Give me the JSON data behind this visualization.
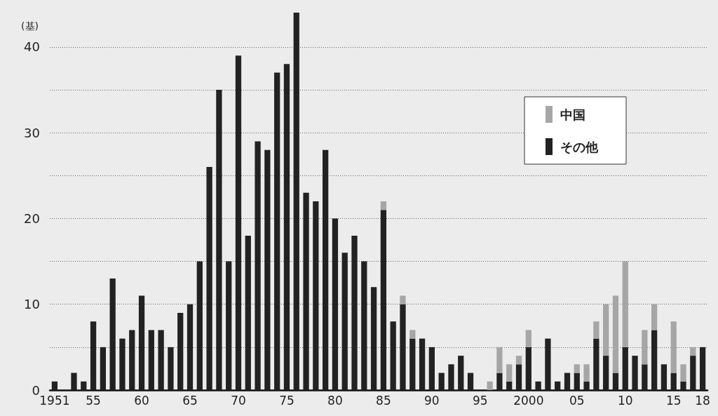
{
  "chart_data": {
    "type": "bar",
    "ylabel": "(基)",
    "categories": [
      "1951",
      null,
      null,
      null,
      "55",
      null,
      null,
      null,
      null,
      "60",
      null,
      null,
      null,
      null,
      "65",
      null,
      null,
      null,
      null,
      "70",
      null,
      null,
      null,
      null,
      "75",
      null,
      null,
      null,
      null,
      "80",
      null,
      null,
      null,
      null,
      "85",
      null,
      null,
      null,
      null,
      "90",
      null,
      null,
      null,
      null,
      "95",
      null,
      null,
      null,
      null,
      "2000",
      null,
      null,
      null,
      null,
      "05",
      null,
      null,
      null,
      null,
      "10",
      null,
      null,
      null,
      null,
      "15",
      null,
      null,
      "18"
    ],
    "stacked": true,
    "series": [
      {
        "name": "その他",
        "color": "#222222",
        "values": [
          1,
          0,
          2,
          1,
          8,
          5,
          13,
          6,
          7,
          11,
          7,
          7,
          5,
          9,
          10,
          15,
          26,
          35,
          15,
          39,
          18,
          29,
          28,
          37,
          38,
          44,
          23,
          22,
          28,
          20,
          16,
          18,
          15,
          12,
          21,
          8,
          10,
          6,
          6,
          5,
          2,
          3,
          4,
          2,
          0,
          0,
          2,
          1,
          3,
          5,
          1,
          6,
          1,
          2,
          2,
          1,
          6,
          4,
          2,
          5,
          4,
          3,
          7,
          3,
          2,
          1,
          4,
          5
        ]
      },
      {
        "name": "中国",
        "color": "#a6a6a6",
        "values": [
          null,
          null,
          null,
          null,
          null,
          null,
          null,
          null,
          null,
          null,
          null,
          null,
          null,
          null,
          null,
          null,
          null,
          null,
          null,
          null,
          null,
          null,
          null,
          null,
          null,
          null,
          null,
          null,
          null,
          null,
          null,
          null,
          null,
          null,
          1,
          null,
          1,
          1,
          null,
          null,
          null,
          null,
          null,
          null,
          null,
          1,
          3,
          2,
          1,
          2,
          null,
          null,
          null,
          null,
          1,
          2,
          2,
          6,
          9,
          10,
          null,
          4,
          3,
          null,
          6,
          2,
          1,
          null
        ]
      }
    ],
    "ylim": [
      0,
      44
    ],
    "yticks": [
      0,
      {
        "value": 5,
        "label": null
      },
      10,
      {
        "value": 15,
        "label": null
      },
      20,
      {
        "value": 25,
        "label": null
      },
      30,
      {
        "value": 35,
        "label": null
      },
      40
    ],
    "grid": "y",
    "legend": "top right"
  }
}
